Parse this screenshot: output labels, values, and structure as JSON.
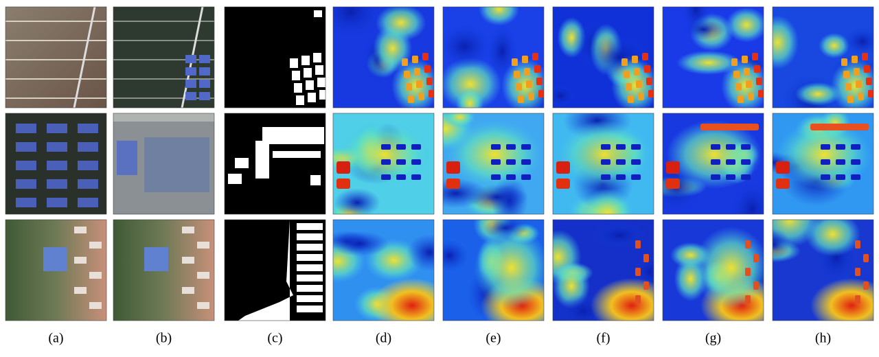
{
  "columns": [
    "(a)",
    "(b)",
    "(c)",
    "(d)",
    "(e)",
    "(f)",
    "(g)",
    "(h)"
  ]
}
